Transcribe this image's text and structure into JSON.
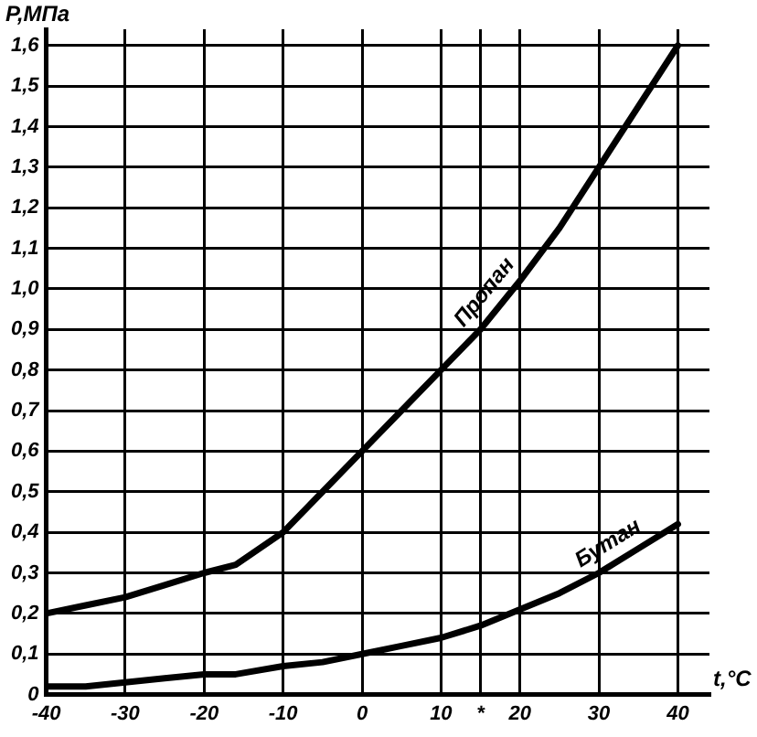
{
  "chart_data": {
    "type": "line",
    "xlabel": "t,°C",
    "ylabel": "P,МПа",
    "x": [
      -40,
      -35,
      -30,
      -25,
      -20,
      -16,
      -10,
      -5,
      0,
      5,
      10,
      15,
      20,
      25,
      30,
      35,
      40
    ],
    "series": [
      {
        "name": "Пропан",
        "color": "#000000",
        "values": [
          0.2,
          0.22,
          0.24,
          0.27,
          0.3,
          0.32,
          0.4,
          0.5,
          0.6,
          0.7,
          0.8,
          0.9,
          1.02,
          1.15,
          1.3,
          1.45,
          1.6
        ]
      },
      {
        "name": "Бутан",
        "color": "#000000",
        "values": [
          0.02,
          0.02,
          0.03,
          0.04,
          0.05,
          0.05,
          0.07,
          0.08,
          0.1,
          0.12,
          0.14,
          0.17,
          0.21,
          0.25,
          0.3,
          0.36,
          0.42
        ]
      }
    ],
    "xlim": [
      -40,
      44
    ],
    "ylim": [
      0,
      1.64
    ],
    "xticks": [
      -40,
      -30,
      -20,
      -10,
      0,
      10,
      {
        "value": 15,
        "label": "*"
      },
      20,
      30,
      40
    ],
    "yticks": [
      0,
      {
        "value": 0.1,
        "label": "0,1"
      },
      {
        "value": 0.2,
        "label": "0,2"
      },
      {
        "value": 0.3,
        "label": "0,3"
      },
      {
        "value": 0.4,
        "label": "0,4"
      },
      {
        "value": 0.5,
        "label": "0,5"
      },
      {
        "value": 0.6,
        "label": "0,6"
      },
      {
        "value": 0.7,
        "label": "0,7"
      },
      {
        "value": 0.8,
        "label": "0,8"
      },
      {
        "value": 0.9,
        "label": "0,9"
      },
      {
        "value": 1.0,
        "label": "1,0"
      },
      {
        "value": 1.1,
        "label": "1,1"
      },
      {
        "value": 1.2,
        "label": "1,2"
      },
      {
        "value": 1.3,
        "label": "1,3"
      },
      {
        "value": 1.4,
        "label": "1,4"
      },
      {
        "value": 1.5,
        "label": "1,5"
      },
      {
        "value": 1.6,
        "label": "1,6"
      }
    ],
    "grid": true,
    "marker": "none",
    "line_style": "solid"
  }
}
